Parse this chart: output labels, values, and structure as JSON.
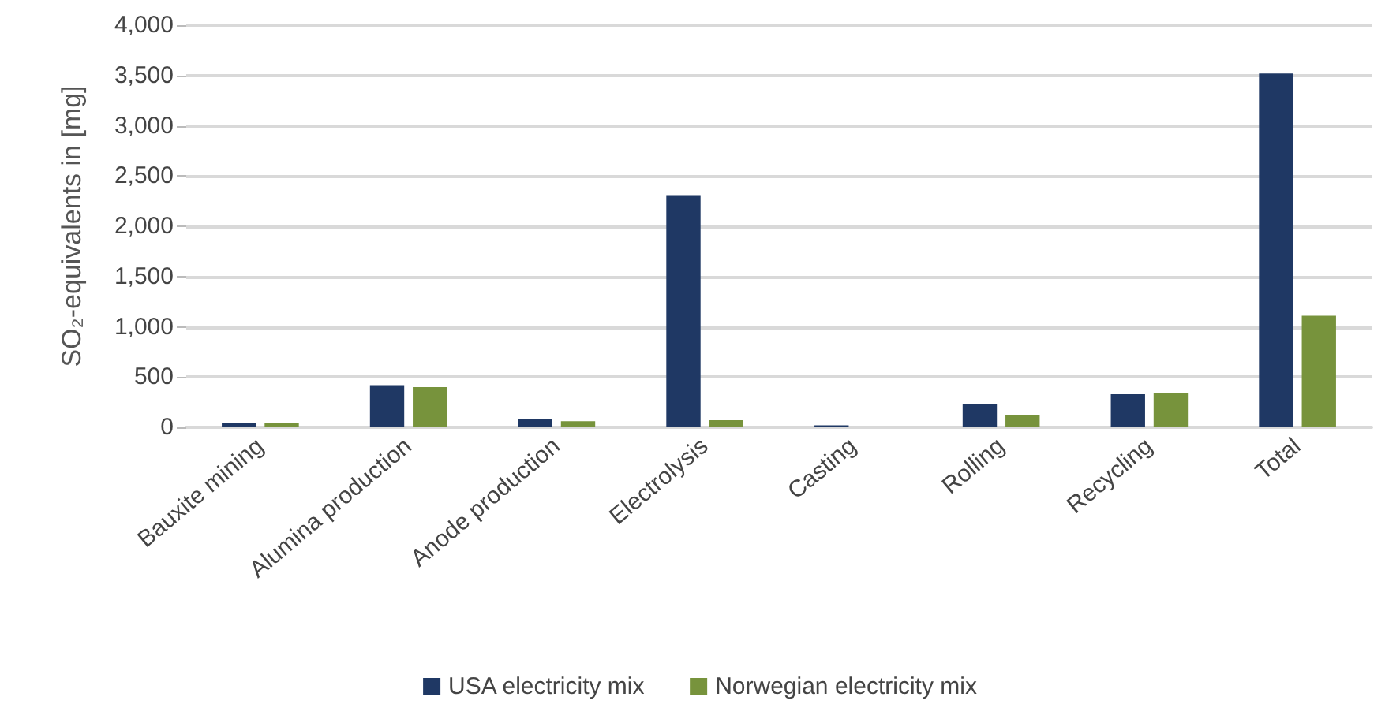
{
  "chart_data": {
    "type": "bar",
    "ylabel": "SO₂-equivalents in [mg]",
    "categories": [
      "Bauxite mining",
      "Alumina production",
      "Anode production",
      "Electrolysis",
      "Casting",
      "Rolling",
      "Recycling",
      "Total"
    ],
    "series": [
      {
        "name": "USA electricity mix",
        "color": "#1f3864",
        "values": [
          40,
          420,
          80,
          2310,
          20,
          235,
          330,
          3520
        ]
      },
      {
        "name": "Norwegian electricity mix",
        "color": "#77933c",
        "values": [
          40,
          400,
          60,
          70,
          0,
          125,
          340,
          1110
        ]
      }
    ],
    "ylim": [
      0,
      4000
    ],
    "yticks": [
      {
        "value": 0,
        "label": "0"
      },
      {
        "value": 500,
        "label": "500"
      },
      {
        "value": 1000,
        "label": "1,000"
      },
      {
        "value": 1500,
        "label": "1,500"
      },
      {
        "value": 2000,
        "label": "2,000"
      },
      {
        "value": 2500,
        "label": "2,500"
      },
      {
        "value": 3000,
        "label": "3,000"
      },
      {
        "value": 3500,
        "label": "3,500"
      },
      {
        "value": 4000,
        "label": "4,000"
      }
    ],
    "grid": "y",
    "legend": "bottom"
  }
}
